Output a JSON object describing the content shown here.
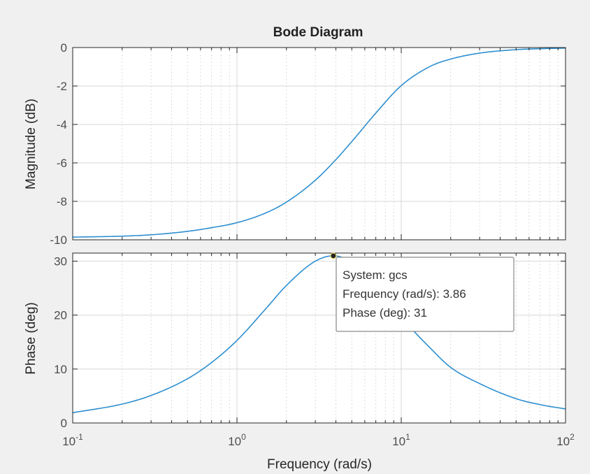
{
  "chart_data": {
    "type": "line",
    "title": "Bode Diagram",
    "xlabel": "Frequency  (rad/s)",
    "xscale": "log",
    "xlim": [
      0.1,
      100
    ],
    "x_ticks": [
      {
        "value": 0.1,
        "base": "10",
        "exp": "-1"
      },
      {
        "value": 1,
        "base": "10",
        "exp": "0"
      },
      {
        "value": 10,
        "base": "10",
        "exp": "1"
      },
      {
        "value": 100,
        "base": "10",
        "exp": "2"
      }
    ],
    "grid": true,
    "line_color": "#2e8fd0",
    "subplots": [
      {
        "name": "magnitude",
        "ylabel": "Magnitude (dB)",
        "ylim": [
          -10,
          0
        ],
        "yticks": [
          0,
          -2,
          -4,
          -6,
          -8,
          -10
        ],
        "series": [
          {
            "x": [
              0.1,
              0.2,
              0.3,
              0.5,
              0.7,
              1.0,
              1.5,
              2.0,
              3.0,
              4.0,
              5.0,
              7.0,
              10,
              15,
              20,
              30,
              50,
              70,
              100
            ],
            "y": [
              -9.86,
              -9.81,
              -9.74,
              -9.56,
              -9.37,
              -9.11,
              -8.6,
              -8.04,
              -6.9,
              -5.83,
              -4.89,
              -3.41,
              -1.98,
              -0.98,
              -0.6,
              -0.29,
              -0.11,
              -0.06,
              -0.03
            ]
          }
        ]
      },
      {
        "name": "phase",
        "ylabel": "Phase (deg)",
        "ylim": [
          0,
          31.5
        ],
        "yticks": [
          0,
          10,
          20,
          30
        ],
        "series": [
          {
            "x": [
              0.1,
              0.2,
              0.3,
              0.5,
              0.7,
              1.0,
              1.5,
              2.0,
              3.0,
              3.86,
              5.0,
              7.0,
              10,
              15,
              20,
              30,
              50,
              70,
              100
            ],
            "y": [
              1.9,
              3.5,
              5.1,
              8.2,
              11.2,
              15.3,
              21.2,
              25.5,
              30.0,
              31.0,
              29.8,
              25.5,
              19.6,
              13.9,
              10.3,
              7.3,
              4.5,
              3.4,
              2.6
            ]
          }
        ]
      }
    ],
    "datatip": {
      "x": 3.86,
      "y": 31,
      "lines": [
        "System: gcs",
        "Frequency (rad/s): 3.86",
        "Phase (deg): 31"
      ]
    }
  }
}
